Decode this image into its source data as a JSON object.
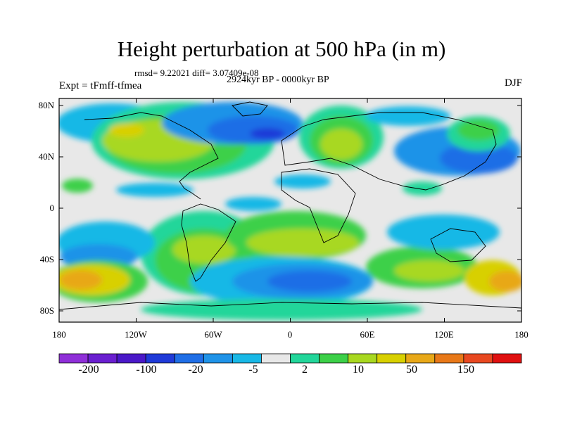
{
  "title": "Height perturbation at 500 hPa (in m)",
  "stats": "rmsd= 9.22021 diff= 3.07409e-08",
  "period": "2924kyr BP - 0000kyr BP",
  "experiment": "Expt = tFmff-tfmea",
  "season": "DJF",
  "lat_labels": [
    "80N",
    "40N",
    "0",
    "40S",
    "80S"
  ],
  "lon_labels": [
    "180",
    "120W",
    "60W",
    "0",
    "60E",
    "120E",
    "180"
  ],
  "colorbar": {
    "colors": [
      "#8f2fd8",
      "#6a1fd0",
      "#4a18c8",
      "#1f3ad8",
      "#1f6ee6",
      "#1f93e8",
      "#18b8e6",
      "#e8e8e8",
      "#22d69a",
      "#3cd048",
      "#a8d820",
      "#d8d000",
      "#e8a818",
      "#e87818",
      "#e84820",
      "#e01010"
    ],
    "tick_labels": [
      "-200",
      "-100",
      "-20",
      "-5",
      "2",
      "10",
      "50",
      "150"
    ]
  },
  "palette": {
    "neutral": "#e8e8e8",
    "cyan": "#18b8e6",
    "lightblue": "#1f93e8",
    "blue": "#1f6ee6",
    "darkblue": "#1f3ad8",
    "teal": "#22d69a",
    "green": "#3cd048",
    "yellowgreen": "#a8d820",
    "yellow": "#d8d000",
    "orange": "#e8a818"
  }
}
